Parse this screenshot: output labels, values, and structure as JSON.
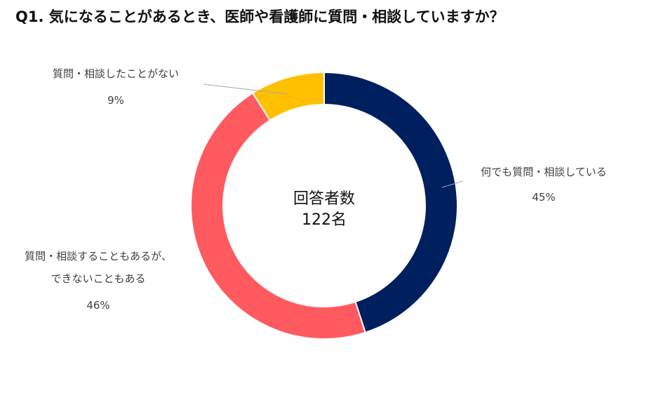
{
  "title": "Q1. 気になることがあるとき、医師や看護師に質問・相談していますか？",
  "center": {
    "line1": "回答者数",
    "line2": "122名"
  },
  "chart_data": {
    "type": "pie",
    "style": "donut",
    "title": "Q1. 気になることがあるとき、医師や看護師に質問・相談していますか？",
    "total_respondents": 122,
    "slices": [
      {
        "label_lines": [
          "何でも質問・相談している"
        ],
        "value": 45,
        "value_label": "45%",
        "color": "#001f5f"
      },
      {
        "label_lines": [
          "質問・相談することもあるが、",
          "できないこともある"
        ],
        "value": 46,
        "value_label": "46%",
        "color": "#ff5a5f"
      },
      {
        "label_lines": [
          "質問・相談したことがない"
        ],
        "value": 9,
        "value_label": "9%",
        "color": "#ffc000"
      }
    ]
  }
}
